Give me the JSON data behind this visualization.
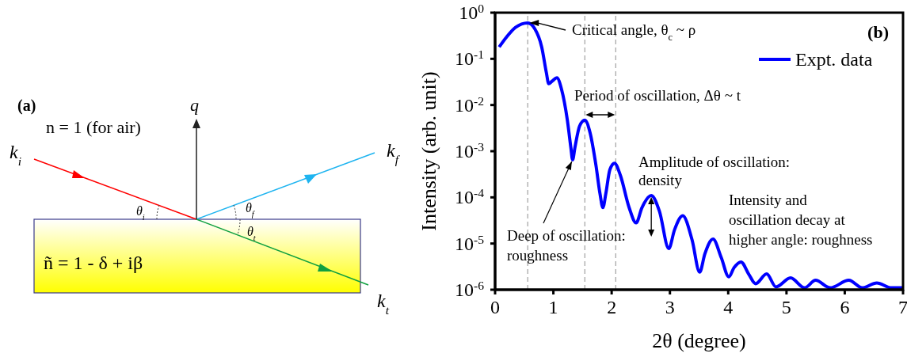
{
  "chart_data": [
    {
      "type": "other",
      "annotations": [
        "(a)",
        "q",
        "k$_{i}$",
        "n = 1 (for air)",
        "k$_{f}$",
        "θ$_{i}$",
        "θ$_{f}$",
        "θ$_{t}$",
        "k$_{t}$",
        "ñ = 1 - δ + iβ"
      ]
    },
    {
      "type": "line",
      "xlabel": "2θ (degree)",
      "ylabel": "Intensity (arb. unit)",
      "log": "y",
      "grid": false,
      "legend": "top right",
      "marker": "none",
      "line_style": "solid",
      "x": [
        0.07,
        0.2,
        0.35,
        0.56,
        0.68,
        0.8,
        0.88,
        0.92,
        0.98,
        1.06,
        1.14,
        1.24,
        1.3,
        1.33,
        1.37,
        1.45,
        1.54,
        1.63,
        1.73,
        1.8,
        1.85,
        1.9,
        1.97,
        2.05,
        2.15,
        2.3,
        2.42,
        2.52,
        2.68,
        2.82,
        2.98,
        3.08,
        3.22,
        3.38,
        3.51,
        3.6,
        3.74,
        3.88,
        4.01,
        4.1,
        4.22,
        4.35,
        4.47,
        4.66,
        4.82,
        5.07,
        5.31,
        5.5,
        5.75,
        6.07,
        6.3,
        6.55,
        6.8,
        7.0
      ],
      "series": [
        {
          "name": "Expt. data",
          "color": "#0000ff",
          "values": [
            0.18,
            0.3,
            0.48,
            0.6,
            0.45,
            0.18,
            0.05,
            0.029,
            0.033,
            0.039,
            0.022,
            0.0047,
            0.0012,
            0.00065,
            0.0012,
            0.0035,
            0.0047,
            0.0025,
            0.0005,
            0.00012,
            6e-05,
            0.00012,
            0.0004,
            0.00055,
            0.0003,
            6e-05,
            2.8e-05,
            6e-05,
            0.00011,
            5e-05,
            7.8e-06,
            2e-05,
            4e-05,
            1.2e-05,
            2.4e-06,
            6e-06,
            1.25e-05,
            5e-06,
            1.9e-06,
            3e-06,
            4e-06,
            2.2e-06,
            1.35e-06,
            2.2e-06,
            1.15e-06,
            1.8e-06,
            1.1e-06,
            1.6e-06,
            1.1e-06,
            1.6e-06,
            1.1e-06,
            1.4e-06,
            1.1e-06,
            1.1e-06
          ]
        }
      ],
      "xlim": [
        0,
        7
      ],
      "xticks": [
        0,
        1,
        2,
        3,
        4,
        5,
        6,
        7
      ],
      "ylim": [
        1e-06,
        1
      ],
      "yticks": [
        {
          "value": 1,
          "label": "10$^{0}$"
        },
        {
          "value": 0.1,
          "label": "10$^{-1}$"
        },
        {
          "value": 0.01,
          "label": "10$^{-2}$"
        },
        {
          "value": 0.001,
          "label": "10$^{-3}$"
        },
        {
          "value": 0.0001,
          "label": "10$^{-4}$"
        },
        {
          "value": 1e-05,
          "label": "10$^{-5}$"
        },
        {
          "value": 1e-06,
          "label": "10$^{-6}$"
        }
      ],
      "ref_lines": [
        {
          "axis": "x",
          "value": 0.56,
          "color": "#a0a0a0",
          "line_style": "dashed"
        },
        {
          "axis": "x",
          "value": 1.54,
          "color": "#a0a0a0",
          "line_style": "dashed"
        },
        {
          "axis": "x",
          "value": 2.07,
          "color": "#a0a0a0",
          "line_style": "dashed"
        }
      ],
      "annotations": [
        {
          "text": "Critical angle, θ$_{c}$ ~ ρ",
          "x": 0.56,
          "y": 0.6
        },
        "Period of oscillation, Δθ ~ t",
        {
          "text": "Amplitude of oscillation: density",
          "x": 2.68,
          "y": 0.00011
        },
        {
          "text": "Deep of oscillation: roughness",
          "x": 1.33,
          "y": 0.00065
        },
        "Intensity and oscillation decay at higher angle: roughness",
        "(b)"
      ]
    }
  ]
}
